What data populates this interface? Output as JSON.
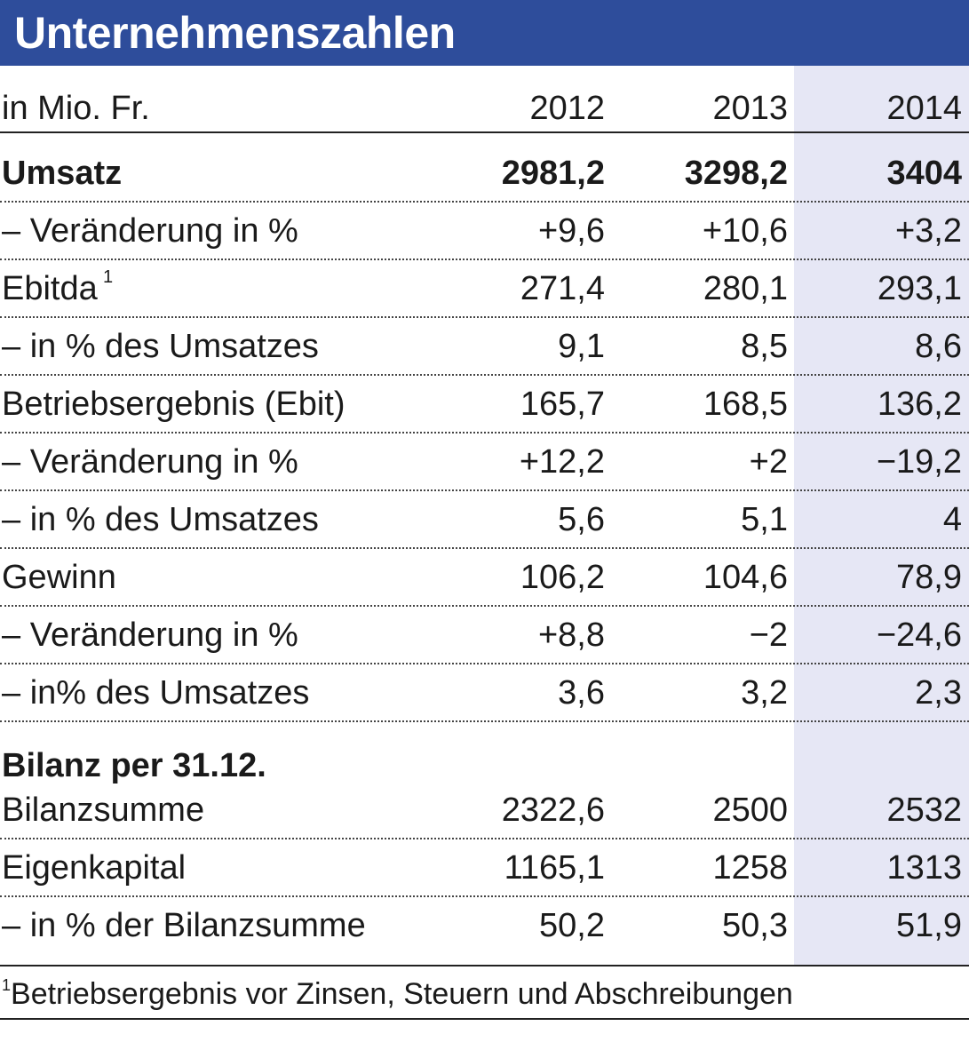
{
  "chart_data": {
    "type": "table",
    "title": "Unternehmenszahlen",
    "unit_label": "in Mio. Fr.",
    "columns": [
      "2012",
      "2013",
      "2014"
    ],
    "rows": [
      {
        "label": "Umsatz",
        "values": [
          "2981,2",
          "3298,2",
          "3404"
        ]
      },
      {
        "label": "– Veränderung in %",
        "values": [
          "+9,6",
          "+10,6",
          "+3,2"
        ]
      },
      {
        "label": "Ebitda",
        "sup": "1",
        "values": [
          "271,4",
          "280,1",
          "293,1"
        ]
      },
      {
        "label": "– in % des Umsatzes",
        "values": [
          "9,1",
          "8,5",
          "8,6"
        ]
      },
      {
        "label": "Betriebsergebnis (Ebit)",
        "values": [
          "165,7",
          "168,5",
          "136,2"
        ]
      },
      {
        "label": "– Veränderung in %",
        "values": [
          "+12,2",
          "+2",
          "−19,2"
        ]
      },
      {
        "label": "– in % des Umsatzes",
        "values": [
          "5,6",
          "5,1",
          "4"
        ]
      },
      {
        "label": "Gewinn",
        "values": [
          "106,2",
          "104,6",
          "78,9"
        ]
      },
      {
        "label": "– Veränderung in %",
        "values": [
          "+8,8",
          "−2",
          "−24,6"
        ]
      },
      {
        "label": "– in% des Umsatzes",
        "values": [
          "3,6",
          "3,2",
          "2,3"
        ]
      }
    ],
    "section_title": "Bilanz per 31.12.",
    "section_rows": [
      {
        "label": "Bilanzsumme",
        "values": [
          "2322,6",
          "2500",
          "2532"
        ]
      },
      {
        "label": "Eigenkapital",
        "values": [
          "1165,1",
          "1258",
          "1313"
        ]
      },
      {
        "label": "– in % der Bilanzsumme",
        "values": [
          "50,2",
          "50,3",
          "51,9"
        ]
      }
    ],
    "footnote_mark": "1",
    "footnote": "Betriebsergebnis vor Zinsen, Steuern und Abschreibungen",
    "highlight_column": "2014",
    "colors": {
      "title_bg": "#2e4d9b",
      "highlight_bg": "#e6e7f5"
    }
  }
}
